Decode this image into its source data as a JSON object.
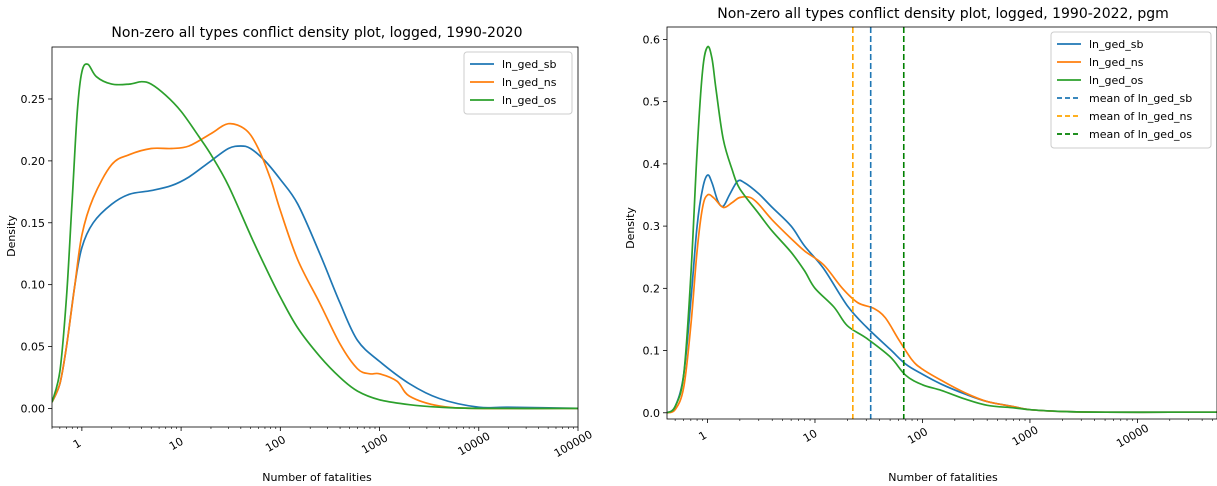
{
  "chart_data": [
    {
      "type": "line",
      "title": "Non-zero all types conflict density plot, logged, 1990-2020",
      "xlabel": "Number of fatalities",
      "ylabel": "Density",
      "xscale": "log",
      "xlim": [
        0.5,
        100000
      ],
      "ylim": [
        -0.015,
        0.292
      ],
      "xticks": [
        "1",
        "10",
        "100",
        "1000",
        "10000",
        "100000"
      ],
      "yticks": [
        "0.00",
        "0.05",
        "0.10",
        "0.15",
        "0.20",
        "0.25"
      ],
      "legend_position": "top-right",
      "series": [
        {
          "name": "ln_ged_sb",
          "color": "#1f77b4",
          "style": "solid",
          "points": [
            [
              0.5,
              0.005
            ],
            [
              0.6,
              0.02
            ],
            [
              0.7,
              0.05
            ],
            [
              0.85,
              0.1
            ],
            [
              1,
              0.13
            ],
            [
              1.3,
              0.15
            ],
            [
              2,
              0.165
            ],
            [
              3,
              0.173
            ],
            [
              5,
              0.176
            ],
            [
              8,
              0.18
            ],
            [
              12,
              0.187
            ],
            [
              20,
              0.2
            ],
            [
              30,
              0.21
            ],
            [
              40,
              0.212
            ],
            [
              50,
              0.21
            ],
            [
              70,
              0.2
            ],
            [
              100,
              0.185
            ],
            [
              150,
              0.165
            ],
            [
              250,
              0.125
            ],
            [
              400,
              0.085
            ],
            [
              600,
              0.055
            ],
            [
              1000,
              0.038
            ],
            [
              2000,
              0.02
            ],
            [
              4000,
              0.008
            ],
            [
              10000,
              0.001
            ],
            [
              20000,
              0.001
            ],
            [
              100000,
              0.0
            ]
          ]
        },
        {
          "name": "ln_ged_ns",
          "color": "#ff7f0e",
          "style": "solid",
          "points": [
            [
              0.5,
              0.005
            ],
            [
              0.6,
              0.02
            ],
            [
              0.7,
              0.05
            ],
            [
              0.85,
              0.1
            ],
            [
              1,
              0.14
            ],
            [
              1.3,
              0.17
            ],
            [
              2,
              0.197
            ],
            [
              3,
              0.205
            ],
            [
              5,
              0.21
            ],
            [
              8,
              0.21
            ],
            [
              12,
              0.212
            ],
            [
              20,
              0.222
            ],
            [
              30,
              0.23
            ],
            [
              45,
              0.225
            ],
            [
              60,
              0.21
            ],
            [
              80,
              0.185
            ],
            [
              100,
              0.16
            ],
            [
              150,
              0.12
            ],
            [
              250,
              0.085
            ],
            [
              400,
              0.052
            ],
            [
              600,
              0.032
            ],
            [
              800,
              0.028
            ],
            [
              1000,
              0.028
            ],
            [
              1500,
              0.022
            ],
            [
              2000,
              0.01
            ],
            [
              4000,
              0.002
            ],
            [
              10000,
              0.0
            ],
            [
              100000,
              0.0
            ]
          ]
        },
        {
          "name": "ln_ged_os",
          "color": "#2ca02c",
          "style": "solid",
          "points": [
            [
              0.5,
              0.005
            ],
            [
              0.6,
              0.03
            ],
            [
              0.7,
              0.09
            ],
            [
              0.8,
              0.17
            ],
            [
              0.9,
              0.24
            ],
            [
              1,
              0.272
            ],
            [
              1.15,
              0.278
            ],
            [
              1.4,
              0.268
            ],
            [
              2,
              0.262
            ],
            [
              3,
              0.262
            ],
            [
              4,
              0.264
            ],
            [
              5,
              0.262
            ],
            [
              7,
              0.253
            ],
            [
              10,
              0.24
            ],
            [
              15,
              0.22
            ],
            [
              20,
              0.205
            ],
            [
              30,
              0.18
            ],
            [
              50,
              0.14
            ],
            [
              70,
              0.115
            ],
            [
              100,
              0.09
            ],
            [
              150,
              0.065
            ],
            [
              250,
              0.042
            ],
            [
              400,
              0.025
            ],
            [
              600,
              0.014
            ],
            [
              1000,
              0.007
            ],
            [
              2000,
              0.003
            ],
            [
              4000,
              0.001
            ],
            [
              10000,
              0.0
            ],
            [
              100000,
              0.0
            ]
          ]
        }
      ]
    },
    {
      "type": "line",
      "title": "Non-zero all types conflict density plot, logged, 1990-2022, pgm",
      "xlabel": "Number of fatalities",
      "ylabel": "Density",
      "xscale": "log",
      "xlim": [
        0.42,
        55000
      ],
      "ylim": [
        -0.01,
        0.62
      ],
      "xticks": [
        "1",
        "10",
        "100",
        "1000",
        "10000"
      ],
      "yticks": [
        "0.0",
        "0.1",
        "0.2",
        "0.3",
        "0.4",
        "0.5",
        "0.6"
      ],
      "legend_position": "top-right",
      "series": [
        {
          "name": "ln_ged_sb",
          "color": "#1f77b4",
          "style": "solid",
          "points": [
            [
              0.42,
              0.0
            ],
            [
              0.5,
              0.01
            ],
            [
              0.6,
              0.06
            ],
            [
              0.7,
              0.18
            ],
            [
              0.8,
              0.3
            ],
            [
              0.9,
              0.36
            ],
            [
              1,
              0.382
            ],
            [
              1.1,
              0.37
            ],
            [
              1.25,
              0.34
            ],
            [
              1.4,
              0.332
            ],
            [
              1.6,
              0.35
            ],
            [
              1.9,
              0.372
            ],
            [
              2.2,
              0.37
            ],
            [
              3,
              0.352
            ],
            [
              4,
              0.33
            ],
            [
              6,
              0.3
            ],
            [
              8,
              0.268
            ],
            [
              12,
              0.232
            ],
            [
              20,
              0.172
            ],
            [
              30,
              0.138
            ],
            [
              50,
              0.102
            ],
            [
              70,
              0.078
            ],
            [
              100,
              0.062
            ],
            [
              150,
              0.046
            ],
            [
              250,
              0.03
            ],
            [
              400,
              0.018
            ],
            [
              700,
              0.01
            ],
            [
              1000,
              0.005
            ],
            [
              2000,
              0.002
            ],
            [
              5000,
              0.001
            ],
            [
              20000,
              0.001
            ],
            [
              55000,
              0.001
            ]
          ]
        },
        {
          "name": "ln_ged_ns",
          "color": "#ff7f0e",
          "style": "solid",
          "points": [
            [
              0.42,
              0.0
            ],
            [
              0.5,
              0.005
            ],
            [
              0.6,
              0.04
            ],
            [
              0.7,
              0.14
            ],
            [
              0.8,
              0.26
            ],
            [
              0.9,
              0.33
            ],
            [
              1,
              0.35
            ],
            [
              1.15,
              0.345
            ],
            [
              1.4,
              0.33
            ],
            [
              1.7,
              0.338
            ],
            [
              2,
              0.346
            ],
            [
              2.5,
              0.346
            ],
            [
              3,
              0.335
            ],
            [
              4,
              0.31
            ],
            [
              6,
              0.28
            ],
            [
              8,
              0.26
            ],
            [
              12,
              0.238
            ],
            [
              18,
              0.2
            ],
            [
              25,
              0.177
            ],
            [
              35,
              0.168
            ],
            [
              45,
              0.153
            ],
            [
              60,
              0.118
            ],
            [
              80,
              0.085
            ],
            [
              100,
              0.07
            ],
            [
              150,
              0.052
            ],
            [
              250,
              0.032
            ],
            [
              400,
              0.018
            ],
            [
              700,
              0.01
            ],
            [
              1000,
              0.005
            ],
            [
              2000,
              0.002
            ],
            [
              5000,
              0.001
            ],
            [
              20000,
              0.001
            ],
            [
              55000,
              0.001
            ]
          ]
        },
        {
          "name": "ln_ged_os",
          "color": "#2ca02c",
          "style": "solid",
          "points": [
            [
              0.42,
              0.0
            ],
            [
              0.5,
              0.01
            ],
            [
              0.6,
              0.06
            ],
            [
              0.7,
              0.22
            ],
            [
              0.8,
              0.42
            ],
            [
              0.9,
              0.55
            ],
            [
              1,
              0.588
            ],
            [
              1.1,
              0.57
            ],
            [
              1.2,
              0.52
            ],
            [
              1.4,
              0.44
            ],
            [
              1.7,
              0.39
            ],
            [
              2,
              0.36
            ],
            [
              3,
              0.32
            ],
            [
              4,
              0.292
            ],
            [
              6,
              0.258
            ],
            [
              8,
              0.228
            ],
            [
              10,
              0.2
            ],
            [
              15,
              0.17
            ],
            [
              20,
              0.14
            ],
            [
              30,
              0.12
            ],
            [
              50,
              0.09
            ],
            [
              70,
              0.06
            ],
            [
              100,
              0.045
            ],
            [
              150,
              0.036
            ],
            [
              250,
              0.022
            ],
            [
              400,
              0.012
            ],
            [
              700,
              0.008
            ],
            [
              1000,
              0.005
            ],
            [
              2000,
              0.002
            ],
            [
              5000,
              0.001
            ],
            [
              20000,
              0.001
            ],
            [
              55000,
              0.001
            ]
          ]
        },
        {
          "name": "mean of ln_ged_sb",
          "color": "#1f77b4",
          "style": "dashed",
          "vline": 33
        },
        {
          "name": "mean of ln_ged_ns",
          "color": "#ffa500",
          "style": "dashed",
          "vline": 22.5
        },
        {
          "name": "mean of ln_ged_os",
          "color": "#008000",
          "style": "dashed",
          "vline": 67
        }
      ]
    }
  ]
}
